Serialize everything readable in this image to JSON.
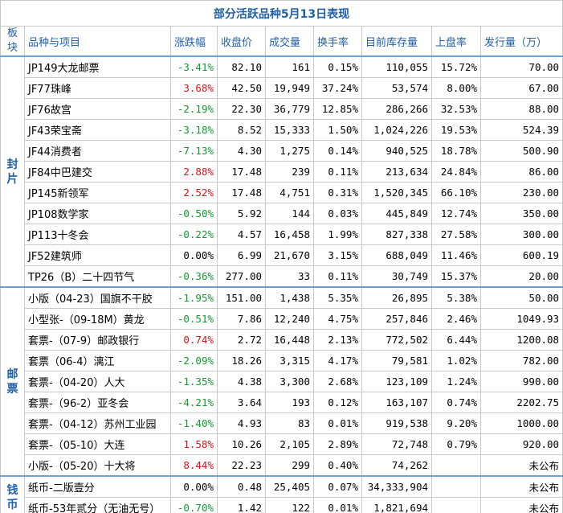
{
  "title": "部分活跃品种5月13日表现",
  "header": [
    "板块",
    "品种与项目",
    "涨跌幅",
    "收盘价",
    "成交量",
    "换手率",
    "目前库存量",
    "上盘率",
    "发行量（万）"
  ],
  "groups": [
    {
      "name": "封片",
      "rows": [
        [
          "JP149大龙邮票",
          "-3.41%",
          "82.10",
          "161",
          "0.15%",
          "110,055",
          "15.72%",
          "70.00"
        ],
        [
          "JF77珠峰",
          "3.68%",
          "42.50",
          "19,949",
          "37.24%",
          "53,574",
          "8.00%",
          "67.00"
        ],
        [
          "JF76故宫",
          "-2.19%",
          "22.30",
          "36,779",
          "12.85%",
          "286,266",
          "32.53%",
          "88.00"
        ],
        [
          "JF43荣宝斋",
          "-3.18%",
          "8.52",
          "15,333",
          "1.50%",
          "1,024,226",
          "19.53%",
          "524.39"
        ],
        [
          "JF44消费者",
          "-7.13%",
          "4.30",
          "1,275",
          "0.14%",
          "940,525",
          "18.78%",
          "500.90"
        ],
        [
          "JF84中巴建交",
          "2.88%",
          "17.48",
          "239",
          "0.11%",
          "213,634",
          "24.84%",
          "86.00"
        ],
        [
          "JP145新领军",
          "2.52%",
          "17.48",
          "4,751",
          "0.31%",
          "1,520,345",
          "66.10%",
          "230.00"
        ],
        [
          "JP108数学家",
          "-0.50%",
          "5.92",
          "144",
          "0.03%",
          "445,849",
          "12.74%",
          "350.00"
        ],
        [
          "JP113十冬会",
          "-0.22%",
          "4.57",
          "16,458",
          "1.99%",
          "827,338",
          "27.58%",
          "300.00"
        ],
        [
          "JF52建筑师",
          "0.00%",
          "6.99",
          "21,670",
          "3.15%",
          "688,049",
          "11.46%",
          "600.19"
        ],
        [
          "TP26（B）二十四节气",
          "-0.36%",
          "277.00",
          "33",
          "0.11%",
          "30,749",
          "15.37%",
          "20.00"
        ]
      ]
    },
    {
      "name": "邮票",
      "rows": [
        [
          "小版（04-23）国旗不干胶",
          "-1.95%",
          "151.00",
          "1,438",
          "5.35%",
          "26,895",
          "5.38%",
          "50.00"
        ],
        [
          "小型张-（09-18M）黄龙",
          "-0.51%",
          "7.86",
          "12,240",
          "4.75%",
          "257,846",
          "2.46%",
          "1049.93"
        ],
        [
          "套票-（07-9）邮政银行",
          "0.74%",
          "2.72",
          "16,448",
          "2.13%",
          "772,502",
          "6.44%",
          "1200.08"
        ],
        [
          "套票（06-4）漓江",
          "-2.09%",
          "18.26",
          "3,315",
          "4.17%",
          "79,581",
          "1.02%",
          "782.00"
        ],
        [
          "套票-（04-20）人大",
          "-1.35%",
          "4.38",
          "3,300",
          "2.68%",
          "123,109",
          "1.24%",
          "990.00"
        ],
        [
          "套票-（96-2）亚冬会",
          "-4.21%",
          "3.64",
          "193",
          "0.12%",
          "163,107",
          "0.74%",
          "2202.75"
        ],
        [
          "套票-（04-12）苏州工业园",
          "-1.40%",
          "4.93",
          "83",
          "0.01%",
          "919,538",
          "9.20%",
          "1000.00"
        ],
        [
          "套票-（05-10）大连",
          "1.58%",
          "10.26",
          "2,105",
          "2.89%",
          "72,748",
          "0.79%",
          "920.00"
        ],
        [
          "小版-（05-20）十大将",
          "8.44%",
          "22.23",
          "299",
          "0.40%",
          "74,262",
          null,
          "未公布"
        ]
      ]
    },
    {
      "name": "钱币",
      "rows": [
        [
          "纸币-二版壹分",
          "0.00%",
          "0.48",
          "25,405",
          "0.07%",
          "34,333,904",
          null,
          "未公布"
        ],
        [
          "纸币-53年贰分（无油无号）",
          "-0.70%",
          "1.42",
          "122",
          "0.01%",
          "1,821,694",
          null,
          "未公布"
        ]
      ]
    }
  ]
}
